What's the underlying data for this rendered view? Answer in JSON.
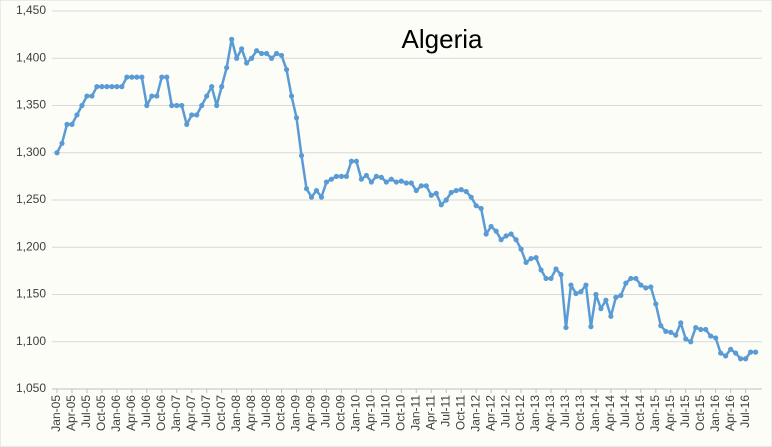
{
  "chart_data": {
    "type": "line",
    "title": "Algeria",
    "color": "#5b9bd5",
    "grid": true,
    "ylim": [
      1050,
      1450
    ],
    "yticks": [
      {
        "value": 1050,
        "label": "1,050"
      },
      {
        "value": 1100,
        "label": "1,100"
      },
      {
        "value": 1150,
        "label": "1,150"
      },
      {
        "value": 1200,
        "label": "1,200"
      },
      {
        "value": 1250,
        "label": "1,250"
      },
      {
        "value": 1300,
        "label": "1,300"
      },
      {
        "value": 1350,
        "label": "1,350"
      },
      {
        "value": 1400,
        "label": "1,400"
      },
      {
        "value": 1450,
        "label": "1,450"
      }
    ],
    "categories": [
      "Jan-05",
      null,
      null,
      "Apr-05",
      null,
      null,
      "Jul-05",
      null,
      null,
      "Oct-05",
      null,
      null,
      "Jan-06",
      null,
      null,
      "Apr-06",
      null,
      null,
      "Jul-06",
      null,
      null,
      "Oct-06",
      null,
      null,
      "Jan-07",
      null,
      null,
      "Apr-07",
      null,
      null,
      "Jul-07",
      null,
      null,
      "Oct-07",
      null,
      null,
      "Jan-08",
      null,
      null,
      "Apr-08",
      null,
      null,
      "Jul-08",
      null,
      null,
      "Oct-08",
      null,
      null,
      "Jan-09",
      null,
      null,
      "Apr-09",
      null,
      null,
      "Jul-09",
      null,
      null,
      "Oct-09",
      null,
      null,
      "Jan-10",
      null,
      null,
      "Apr-10",
      null,
      null,
      "Jul-10",
      null,
      null,
      "Oct-10",
      null,
      null,
      "Jan-11",
      null,
      null,
      "Apr-11",
      null,
      null,
      "Jul-11",
      null,
      null,
      "Oct-11",
      null,
      null,
      "Jan-12",
      null,
      null,
      "Apr-12",
      null,
      null,
      "Jul-12",
      null,
      null,
      "Oct-12",
      null,
      null,
      "Jan-13",
      null,
      null,
      "Apr-13",
      null,
      null,
      "Jul-13",
      null,
      null,
      "Oct-13",
      null,
      null,
      "Jan-14",
      null,
      null,
      "Apr-14",
      null,
      null,
      "Jul-14",
      null,
      null,
      "Oct-14",
      null,
      null,
      "Jan-15",
      null,
      null,
      "Apr-15",
      null,
      null,
      "Jul-15",
      null,
      null,
      "Oct-15",
      null,
      null,
      "Jan-16",
      null,
      null,
      "Apr-16",
      null,
      null,
      "Jul-16",
      null,
      null
    ],
    "values": [
      1300,
      1310,
      1330,
      1330,
      1340,
      1350,
      1360,
      1360,
      1370,
      1370,
      1370,
      1370,
      1370,
      1370,
      1380,
      1380,
      1380,
      1380,
      1350,
      1360,
      1360,
      1380,
      1380,
      1350,
      1350,
      1350,
      1330,
      1340,
      1340,
      1350,
      1360,
      1370,
      1350,
      1370,
      1390,
      1420,
      1400,
      1410,
      1395,
      1400,
      1408,
      1405,
      1405,
      1400,
      1405,
      1403,
      1388,
      1360,
      1337,
      1297,
      1262,
      1253,
      1260,
      1253,
      1269,
      1272,
      1275,
      1275,
      1275,
      1291,
      1291,
      1272,
      1276,
      1269,
      1275,
      1274,
      1269,
      1272,
      1269,
      1270,
      1268,
      1268,
      1260,
      1265,
      1265,
      1255,
      1257,
      1245,
      1250,
      1258,
      1260,
      1261,
      1259,
      1253,
      1244,
      1241,
      1214,
      1222,
      1217,
      1208,
      1212,
      1214,
      1208,
      1198,
      1184,
      1188,
      1189,
      1176,
      1167,
      1167,
      1177,
      1171,
      1115,
      1160,
      1151,
      1153,
      1160,
      1116,
      1150,
      1135,
      1144,
      1127,
      1147,
      1149,
      1162,
      1167,
      1167,
      1160,
      1157,
      1158,
      1140,
      1117,
      1111,
      1110,
      1107,
      1120,
      1103,
      1100,
      1115,
      1113,
      1113,
      1106,
      1104,
      1088,
      1085,
      1092,
      1088,
      1082,
      1082,
      1089,
      1089
    ]
  }
}
